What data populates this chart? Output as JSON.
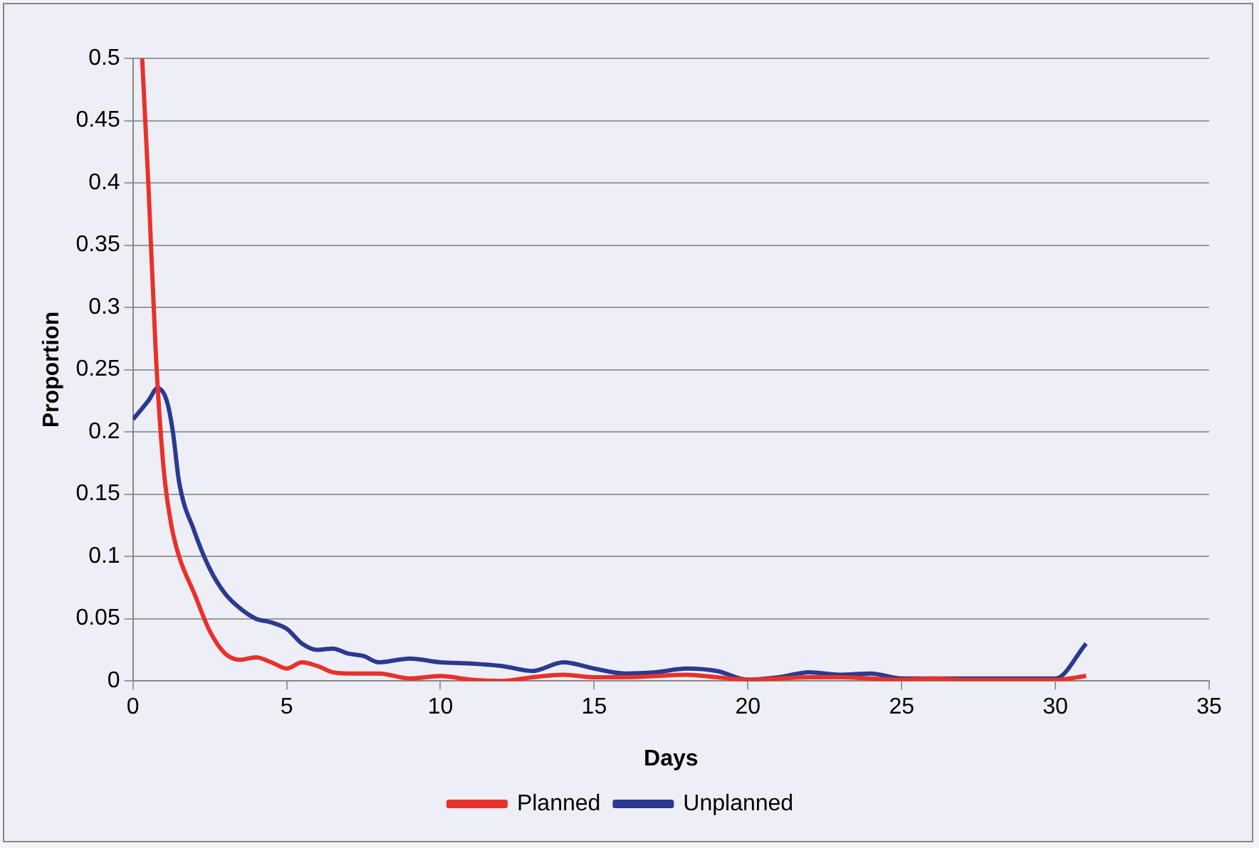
{
  "chart_data": {
    "type": "line",
    "xlabel": "Days",
    "ylabel": "Proportion",
    "xlim": [
      0,
      35
    ],
    "xticks": [
      0,
      5,
      10,
      15,
      20,
      25,
      30,
      35
    ],
    "ylim": [
      0,
      0.5
    ],
    "yticks": [
      0,
      0.05,
      0.1,
      0.15,
      0.2,
      0.25,
      0.3,
      0.35,
      0.4,
      0.45,
      0.5
    ],
    "grid": "y",
    "legend": "bottom",
    "marker": "none",
    "line_style": "solid",
    "series": [
      {
        "name": "Planned",
        "color": "#e8312a",
        "x": [
          0.3,
          0.5,
          0.75,
          1,
          1.25,
          1.5,
          2,
          2.5,
          3,
          3.5,
          4,
          4.5,
          5,
          5.5,
          6,
          6.5,
          7,
          8,
          9,
          10,
          11,
          12,
          13,
          14,
          15,
          16,
          17,
          18,
          19,
          20,
          21,
          22,
          23,
          24,
          25,
          26,
          27,
          28,
          29,
          30,
          31
        ],
        "values": [
          0.5,
          0.4,
          0.26,
          0.17,
          0.125,
          0.1,
          0.07,
          0.04,
          0.022,
          0.017,
          0.019,
          0.015,
          0.01,
          0.015,
          0.012,
          0.007,
          0.006,
          0.006,
          0.002,
          0.004,
          0.001,
          0,
          0.003,
          0.005,
          0.003,
          0.003,
          0.004,
          0.005,
          0.003,
          0.001,
          0.002,
          0.003,
          0.003,
          0.002,
          0.001,
          0.002,
          0.001,
          0.001,
          0.001,
          0.001,
          0.004
        ]
      },
      {
        "name": "Unplanned",
        "color": "#2b3990",
        "x": [
          0,
          0.5,
          0.8,
          1.1,
          1.3,
          1.5,
          2,
          2.5,
          3,
          3.5,
          4,
          4.5,
          5,
          5.5,
          6,
          6.5,
          7,
          7.5,
          8,
          9,
          10,
          11,
          12,
          13,
          14,
          15,
          16,
          17,
          18,
          19,
          20,
          21,
          22,
          23,
          24,
          25,
          26,
          27,
          28,
          29,
          30,
          31
        ],
        "values": [
          0.21,
          0.225,
          0.235,
          0.225,
          0.2,
          0.16,
          0.12,
          0.09,
          0.07,
          0.058,
          0.05,
          0.047,
          0.042,
          0.03,
          0.025,
          0.026,
          0.022,
          0.02,
          0.015,
          0.018,
          0.015,
          0.014,
          0.012,
          0.008,
          0.015,
          0.01,
          0.006,
          0.007,
          0.01,
          0.008,
          0.001,
          0.003,
          0.007,
          0.005,
          0.006,
          0.002,
          0.002,
          0.002,
          0.002,
          0.002,
          0.002,
          0.03
        ]
      }
    ]
  }
}
